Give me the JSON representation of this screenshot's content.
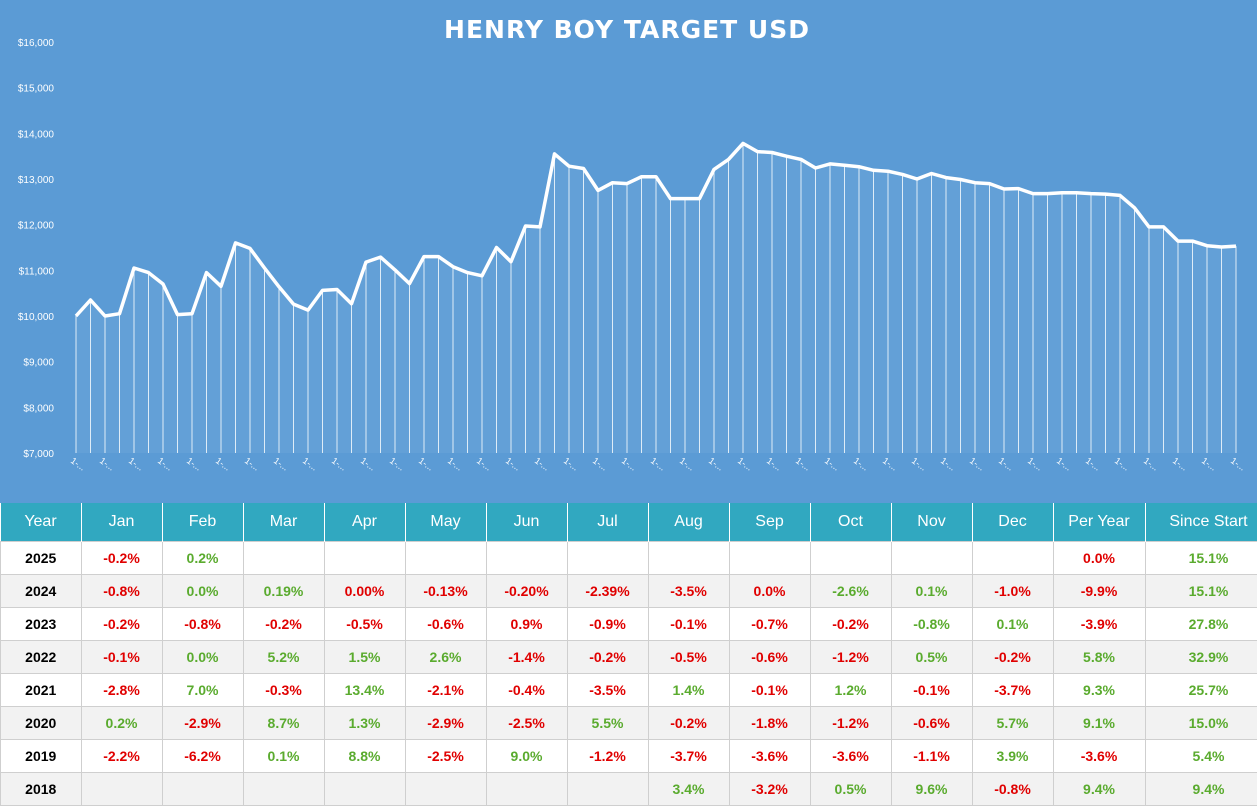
{
  "chart_data": {
    "type": "area",
    "title": "HENRY BOY TARGET USD",
    "xlabel": "",
    "ylabel": "",
    "ylim": [
      7000,
      16000
    ],
    "y_ticks": [
      "$7,000",
      "$8,000",
      "$9,000",
      "$10,000",
      "$11,000",
      "$12,000",
      "$13,000",
      "$14,000",
      "$15,000",
      "$16,000"
    ],
    "y_tick_values": [
      7000,
      8000,
      9000,
      10000,
      11000,
      12000,
      13000,
      14000,
      15000,
      16000
    ],
    "x_tick_label": "1-...",
    "grid": false,
    "series": [
      {
        "values": [
          10000,
          10350,
          10000,
          10050,
          11050,
          10950,
          10700,
          10030,
          10050,
          10950,
          10650,
          11600,
          11480,
          11050,
          10640,
          10260,
          10130,
          10560,
          10580,
          10270,
          11180,
          11290,
          11010,
          10710,
          11300,
          11300,
          11080,
          10950,
          10880,
          11500,
          11190,
          11970,
          11950,
          13550,
          13280,
          13230,
          12750,
          12920,
          12900,
          13050,
          13050,
          12570,
          12570,
          12570,
          13210,
          13430,
          13780,
          13600,
          13580,
          13500,
          13430,
          13240,
          13330,
          13300,
          13270,
          13190,
          13170,
          13100,
          13000,
          13120,
          13030,
          12990,
          12920,
          12900,
          12780,
          12790,
          12680,
          12680,
          12700,
          12700,
          12680,
          12670,
          12640,
          12370,
          11950,
          11950,
          11640,
          11640,
          11540,
          11510,
          11530
        ]
      }
    ]
  },
  "table": {
    "headers": [
      "Year",
      "Jan",
      "Feb",
      "Mar",
      "Apr",
      "May",
      "Jun",
      "Jul",
      "Aug",
      "Sep",
      "Oct",
      "Nov",
      "Dec",
      "Per Year",
      "Since Start"
    ],
    "rows": [
      [
        "2025",
        "-0.2%",
        "0.2%",
        "",
        "",
        "",
        "",
        "",
        "",
        "",
        "",
        "",
        "",
        "0.0%",
        "15.1%"
      ],
      [
        "2024",
        "-0.8%",
        "0.0%",
        "0.19%",
        "0.00%",
        "-0.13%",
        "-0.20%",
        "-2.39%",
        "-3.5%",
        "0.0%",
        "-2.6%",
        "0.1%",
        "-1.0%",
        "-9.9%",
        "15.1%"
      ],
      [
        "2023",
        "-0.2%",
        "-0.8%",
        "-0.2%",
        "-0.5%",
        "-0.6%",
        "0.9%",
        "-0.9%",
        "-0.1%",
        "-0.7%",
        "-0.2%",
        "-0.8%",
        "0.1%",
        "-3.9%",
        "27.8%"
      ],
      [
        "2022",
        "-0.1%",
        "0.0%",
        "5.2%",
        "1.5%",
        "2.6%",
        "-1.4%",
        "-0.2%",
        "-0.5%",
        "-0.6%",
        "-1.2%",
        "0.5%",
        "-0.2%",
        "5.8%",
        "32.9%"
      ],
      [
        "2021",
        "-2.8%",
        "7.0%",
        "-0.3%",
        "13.4%",
        "-2.1%",
        "-0.4%",
        "-3.5%",
        "1.4%",
        "-0.1%",
        "1.2%",
        "-0.1%",
        "-3.7%",
        "9.3%",
        "25.7%"
      ],
      [
        "2020",
        "0.2%",
        "-2.9%",
        "8.7%",
        "1.3%",
        "-2.9%",
        "-2.5%",
        "5.5%",
        "-0.2%",
        "-1.8%",
        "-1.2%",
        "-0.6%",
        "5.7%",
        "9.1%",
        "15.0%"
      ],
      [
        "2019",
        "-2.2%",
        "-6.2%",
        "0.1%",
        "8.8%",
        "-2.5%",
        "9.0%",
        "-1.2%",
        "-3.7%",
        "-3.6%",
        "-3.6%",
        "-1.1%",
        "3.9%",
        "-3.6%",
        "5.4%"
      ],
      [
        "2018",
        "",
        "",
        "",
        "",
        "",
        "",
        "",
        "3.4%",
        "-3.2%",
        "0.5%",
        "9.6%",
        "-0.8%",
        "9.4%",
        "9.4%"
      ]
    ],
    "colors": {
      "header_bg": "#31a8c0",
      "chart_bg": "#5b9bd5",
      "negative": "#e00000",
      "positive": "#5aab2e",
      "zero_row_2024_col": "#e00000"
    },
    "red_cells": [
      [
        0,
        13
      ],
      [
        1,
        4
      ],
      [
        1,
        5
      ],
      [
        1,
        6
      ],
      [
        1,
        7
      ],
      [
        1,
        8
      ],
      [
        1,
        9
      ],
      [
        2,
        2
      ],
      [
        2,
        6
      ]
    ],
    "green_cells": [
      [
        1,
        2
      ],
      [
        1,
        3
      ],
      [
        1,
        10
      ],
      [
        2,
        11
      ],
      [
        3,
        2
      ],
      [
        3,
        11
      ],
      [
        5,
        13
      ]
    ]
  }
}
